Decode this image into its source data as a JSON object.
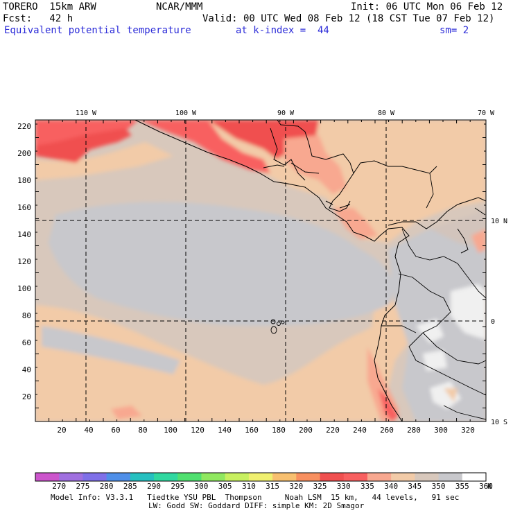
{
  "header": {
    "model": "TORERO  15km ARW",
    "center": "NCAR/MMM",
    "init": "Init: 06 UTC Mon 06 Feb 12",
    "fcst": "Fcst:   42 h",
    "valid": "Valid: 00 UTC Wed 08 Feb 12 (18 CST Tue 07 Feb 12)",
    "field": "Equivalent potential temperature",
    "level": "at k-index =  44",
    "smooth": "sm= 2"
  },
  "map": {
    "top_lon_labels": [
      "110 W",
      "100 W",
      "90 W",
      "80 W",
      "70 W"
    ],
    "right_lat_labels": [
      "10 N",
      "0",
      "10 S"
    ],
    "y_ticks": [
      "220",
      "200",
      "180",
      "160",
      "140",
      "120",
      "100",
      "80",
      "60",
      "40",
      "20"
    ],
    "x_ticks": [
      "20",
      "40",
      "60",
      "80",
      "100",
      "120",
      "140",
      "160",
      "180",
      "200",
      "220",
      "240",
      "260",
      "280",
      "300",
      "320"
    ]
  },
  "colorbar": {
    "labels": [
      "270",
      "275",
      "280",
      "285",
      "290",
      "295",
      "300",
      "305",
      "310",
      "315",
      "320",
      "325",
      "330",
      "335",
      "340",
      "345",
      "350",
      "355",
      "360"
    ],
    "unit": "K",
    "colors": [
      "#cc55cc",
      "#a070e0",
      "#7f70e8",
      "#4f8fe8",
      "#26c0c0",
      "#30d8a0",
      "#50e070",
      "#90e860",
      "#c8f060",
      "#f0f070",
      "#f8c070",
      "#f89060",
      "#f05050",
      "#f86060",
      "#f8a890",
      "#f2cba8",
      "#d8c8bc",
      "#c8c8cc",
      "#ffffff"
    ]
  },
  "footer": {
    "line1": "Model Info: V3.3.1   Tiedtke YSU PBL  Thompson     Noah LSM  15 km,   44 levels,   91 sec",
    "line2": "LW: Godd SW: Goddard DIFF: simple KM: 2D Smagor"
  }
}
